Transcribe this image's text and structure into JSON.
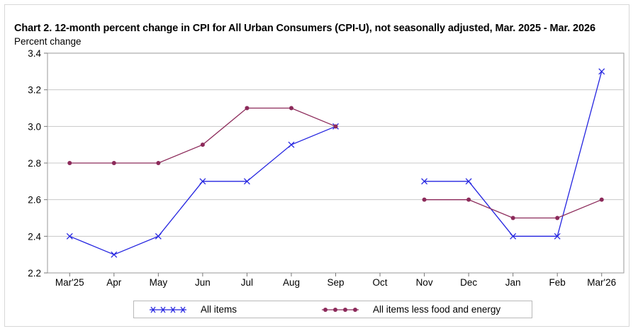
{
  "chart_data": {
    "type": "line",
    "title": "Chart 2. 12-month percent change in CPI for All Urban Consumers (CPI-U), not seasonally adjusted, Mar. 2025 - Mar. 2026",
    "ylabel": "Percent change",
    "xlabel": "",
    "categories": [
      "Mar'25",
      "Apr",
      "May",
      "Jun",
      "Jul",
      "Aug",
      "Sep",
      "Oct",
      "Nov",
      "Dec",
      "Jan",
      "Feb",
      "Mar'26"
    ],
    "ylim": [
      2.2,
      3.4
    ],
    "yticks": [
      "2.2",
      "2.4",
      "2.6",
      "2.8",
      "3.0",
      "3.2",
      "3.4"
    ],
    "grid": true,
    "legend_position": "bottom",
    "series": [
      {
        "name": "All items",
        "color": "#2424e0",
        "marker": "x",
        "values": [
          2.4,
          2.3,
          2.4,
          2.7,
          2.7,
          2.9,
          3.0,
          null,
          2.7,
          2.7,
          2.4,
          2.4,
          3.3
        ]
      },
      {
        "name": "All items less food and energy",
        "color": "#8c2a5a",
        "marker": "circle",
        "values": [
          2.8,
          2.8,
          2.8,
          2.9,
          3.1,
          3.1,
          3.0,
          null,
          2.6,
          2.6,
          2.5,
          2.5,
          2.6
        ]
      }
    ]
  }
}
